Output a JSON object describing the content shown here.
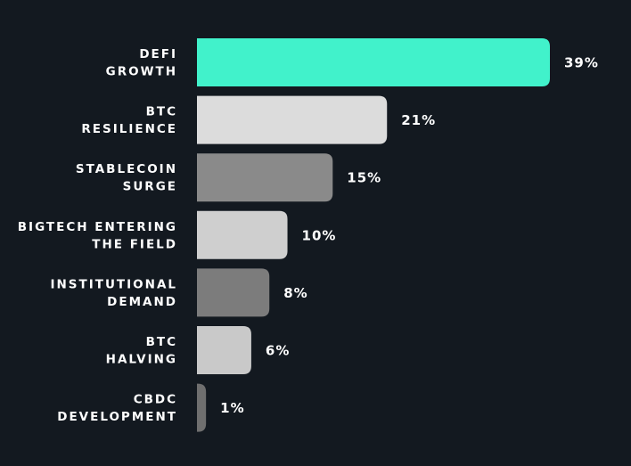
{
  "chart_data": {
    "type": "bar",
    "orientation": "horizontal",
    "categories": [
      [
        "DEFI",
        "GROWTH"
      ],
      [
        "BTC",
        "RESILIENCE"
      ],
      [
        "STABLECOIN",
        "SURGE"
      ],
      [
        "BIGTECH ENTERING",
        "THE FIELD"
      ],
      [
        "INSTITUTIONAL",
        "DEMAND"
      ],
      [
        "BTC",
        "HALVING"
      ],
      [
        "CBDC",
        "DEVELOPMENT"
      ]
    ],
    "values": [
      39,
      21,
      15,
      10,
      8,
      6,
      1
    ],
    "value_labels": [
      "39%",
      "21%",
      "15%",
      "10%",
      "8%",
      "6%",
      "1%"
    ],
    "unit": "%",
    "xlim": [
      0,
      39
    ],
    "grid": false,
    "colors": {
      "background": "#131920",
      "bars": [
        "#41f2cb",
        "#dcdcdc",
        "#8a8a8a",
        "#cfcfcf",
        "#7c7c7c",
        "#c9c9c9",
        "#6f6f6f"
      ],
      "text": "#ffffff"
    }
  }
}
